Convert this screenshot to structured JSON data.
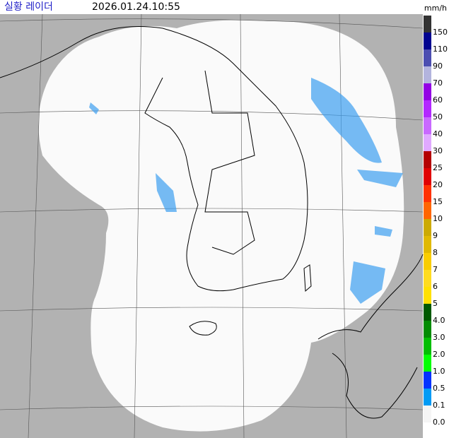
{
  "header": {
    "title": "실황 레이더",
    "timestamp": "2026.01.24.10:55"
  },
  "legend": {
    "unit": "mm/h",
    "items": [
      {
        "label": "150",
        "color": "#333333"
      },
      {
        "label": "110",
        "color": "#000390"
      },
      {
        "label": "90",
        "color": "#4c4eb1"
      },
      {
        "label": "70",
        "color": "#b3b4de"
      },
      {
        "label": "60",
        "color": "#9300e4"
      },
      {
        "label": "50",
        "color": "#b329ff"
      },
      {
        "label": "40",
        "color": "#c969ff"
      },
      {
        "label": "30",
        "color": "#e0a9ff"
      },
      {
        "label": "25",
        "color": "#b40000"
      },
      {
        "label": "20",
        "color": "#e00000"
      },
      {
        "label": "15",
        "color": "#ff3200"
      },
      {
        "label": "10",
        "color": "#ff6600"
      },
      {
        "label": "9",
        "color": "#ccaa00"
      },
      {
        "label": "8",
        "color": "#e0b900"
      },
      {
        "label": "7",
        "color": "#f9cd00"
      },
      {
        "label": "6",
        "color": "#ffdc1f"
      },
      {
        "label": "5",
        "color": "#ffe100"
      },
      {
        "label": "4.0",
        "color": "#005a00"
      },
      {
        "label": "3.0",
        "color": "#008c00"
      },
      {
        "label": "2.0",
        "color": "#00be00"
      },
      {
        "label": "1.0",
        "color": "#00ff00"
      },
      {
        "label": "0.5",
        "color": "#0033ff"
      },
      {
        "label": "0.1",
        "color": "#009bf5"
      },
      {
        "label": "0.0",
        "color": "#f5f5f5"
      }
    ]
  }
}
